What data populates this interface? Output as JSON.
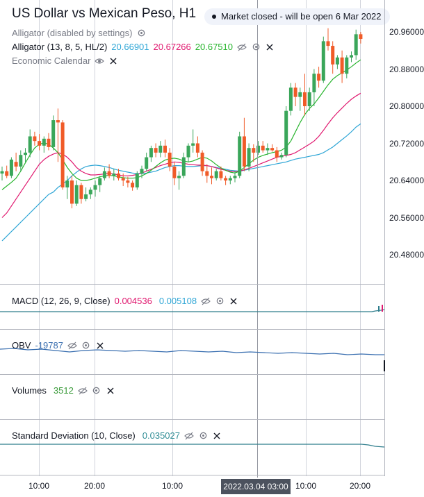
{
  "header": {
    "title": "US Dollar vs Mexican Peso, H1",
    "market_status": "Market closed - will be open 6 Mar 2022"
  },
  "legend": {
    "alligator_disabled": "Alligator (disabled by settings)",
    "alligator_name": "Alligator (13, 8, 5, HL/2)",
    "alligator_jaw": "20.66901",
    "alligator_teeth": "20.67266",
    "alligator_lips": "20.67510",
    "economic_calendar": "Economic Calendar"
  },
  "indicators": {
    "macd_name": "MACD (12, 26, 9, Close)",
    "macd_value1": "0.004536",
    "macd_value2": "0.005108",
    "obv_name": "OBV",
    "obv_value": "-19787",
    "volumes_name": "Volumes",
    "volumes_value": "3512",
    "stddev_name": "Standard Deviation (10, Close)",
    "stddev_value": "0.035027"
  },
  "price_axis": [
    "20.96000",
    "20.88000",
    "20.80000",
    "20.72000",
    "20.64000",
    "20.56000",
    "20.48000"
  ],
  "time_axis": [
    "10:00",
    "20:00",
    "10:00",
    "2022.03.04 03:00",
    "10:00",
    "20:00"
  ],
  "colors": {
    "bull": "#26a69a",
    "bull_candle": "#3aa65a",
    "bear": "#f05b28",
    "jaw": "#2fa6d6",
    "teeth": "#e0186f",
    "lips": "#28b52e"
  },
  "chart_data": {
    "type": "candlestick",
    "title": "US Dollar vs Mexican Peso, H1",
    "ylim": [
      20.44,
      20.98
    ],
    "y_ticks": [
      20.48,
      20.56,
      20.64,
      20.72,
      20.8,
      20.88,
      20.96
    ],
    "candles": [
      {
        "o": 20.655,
        "h": 20.67,
        "l": 20.64,
        "c": 20.66
      },
      {
        "o": 20.66,
        "h": 20.672,
        "l": 20.645,
        "c": 20.65
      },
      {
        "o": 20.65,
        "h": 20.69,
        "l": 20.645,
        "c": 20.685
      },
      {
        "o": 20.68,
        "h": 20.7,
        "l": 20.66,
        "c": 20.67
      },
      {
        "o": 20.67,
        "h": 20.705,
        "l": 20.66,
        "c": 20.695
      },
      {
        "o": 20.695,
        "h": 20.71,
        "l": 20.68,
        "c": 20.7
      },
      {
        "o": 20.7,
        "h": 20.75,
        "l": 20.69,
        "c": 20.735
      },
      {
        "o": 20.735,
        "h": 20.745,
        "l": 20.715,
        "c": 20.725
      },
      {
        "o": 20.725,
        "h": 20.74,
        "l": 20.705,
        "c": 20.715
      },
      {
        "o": 20.715,
        "h": 20.735,
        "l": 20.7,
        "c": 20.73
      },
      {
        "o": 20.73,
        "h": 20.742,
        "l": 20.705,
        "c": 20.712
      },
      {
        "o": 20.712,
        "h": 20.78,
        "l": 20.705,
        "c": 20.77
      },
      {
        "o": 20.77,
        "h": 20.795,
        "l": 20.68,
        "c": 20.765
      },
      {
        "o": 20.765,
        "h": 20.77,
        "l": 20.62,
        "c": 20.625
      },
      {
        "o": 20.625,
        "h": 20.65,
        "l": 20.6,
        "c": 20.64
      },
      {
        "o": 20.64,
        "h": 20.65,
        "l": 20.58,
        "c": 20.59
      },
      {
        "o": 20.59,
        "h": 20.64,
        "l": 20.585,
        "c": 20.63
      },
      {
        "o": 20.63,
        "h": 20.635,
        "l": 20.59,
        "c": 20.6
      },
      {
        "o": 20.6,
        "h": 20.625,
        "l": 20.595,
        "c": 20.61
      },
      {
        "o": 20.61,
        "h": 20.625,
        "l": 20.6,
        "c": 20.62
      },
      {
        "o": 20.62,
        "h": 20.64,
        "l": 20.605,
        "c": 20.63
      },
      {
        "o": 20.63,
        "h": 20.65,
        "l": 20.615,
        "c": 20.645
      },
      {
        "o": 20.645,
        "h": 20.668,
        "l": 20.64,
        "c": 20.66
      },
      {
        "o": 20.66,
        "h": 20.675,
        "l": 20.645,
        "c": 20.65
      },
      {
        "o": 20.65,
        "h": 20.665,
        "l": 20.64,
        "c": 20.655
      },
      {
        "o": 20.655,
        "h": 20.665,
        "l": 20.64,
        "c": 20.645
      },
      {
        "o": 20.645,
        "h": 20.655,
        "l": 20.628,
        "c": 20.64
      },
      {
        "o": 20.64,
        "h": 20.648,
        "l": 20.625,
        "c": 20.635
      },
      {
        "o": 20.635,
        "h": 20.64,
        "l": 20.618,
        "c": 20.625
      },
      {
        "o": 20.625,
        "h": 20.66,
        "l": 20.62,
        "c": 20.655
      },
      {
        "o": 20.655,
        "h": 20.672,
        "l": 20.645,
        "c": 20.665
      },
      {
        "o": 20.665,
        "h": 20.7,
        "l": 20.66,
        "c": 20.69
      },
      {
        "o": 20.69,
        "h": 20.715,
        "l": 20.68,
        "c": 20.71
      },
      {
        "o": 20.71,
        "h": 20.72,
        "l": 20.69,
        "c": 20.7
      },
      {
        "o": 20.7,
        "h": 20.725,
        "l": 20.69,
        "c": 20.715
      },
      {
        "o": 20.715,
        "h": 20.728,
        "l": 20.69,
        "c": 20.7
      },
      {
        "o": 20.7,
        "h": 20.71,
        "l": 20.66,
        "c": 20.67
      },
      {
        "o": 20.67,
        "h": 20.68,
        "l": 20.63,
        "c": 20.645
      },
      {
        "o": 20.645,
        "h": 20.66,
        "l": 20.62,
        "c": 20.65
      },
      {
        "o": 20.65,
        "h": 20.7,
        "l": 20.645,
        "c": 20.69
      },
      {
        "o": 20.69,
        "h": 20.72,
        "l": 20.68,
        "c": 20.715
      },
      {
        "o": 20.715,
        "h": 20.75,
        "l": 20.7,
        "c": 20.72
      },
      {
        "o": 20.72,
        "h": 20.735,
        "l": 20.69,
        "c": 20.7
      },
      {
        "o": 20.7,
        "h": 20.705,
        "l": 20.65,
        "c": 20.66
      },
      {
        "o": 20.66,
        "h": 20.675,
        "l": 20.635,
        "c": 20.65
      },
      {
        "o": 20.65,
        "h": 20.668,
        "l": 20.632,
        "c": 20.645
      },
      {
        "o": 20.645,
        "h": 20.665,
        "l": 20.64,
        "c": 20.66
      },
      {
        "o": 20.66,
        "h": 20.67,
        "l": 20.64,
        "c": 20.645
      },
      {
        "o": 20.645,
        "h": 20.65,
        "l": 20.63,
        "c": 20.64
      },
      {
        "o": 20.64,
        "h": 20.65,
        "l": 20.632,
        "c": 20.645
      },
      {
        "o": 20.645,
        "h": 20.66,
        "l": 20.636,
        "c": 20.65
      },
      {
        "o": 20.65,
        "h": 20.745,
        "l": 20.645,
        "c": 20.735
      },
      {
        "o": 20.735,
        "h": 20.775,
        "l": 20.66,
        "c": 20.67
      },
      {
        "o": 20.67,
        "h": 20.72,
        "l": 20.66,
        "c": 20.71
      },
      {
        "o": 20.71,
        "h": 20.718,
        "l": 20.68,
        "c": 20.7
      },
      {
        "o": 20.7,
        "h": 20.725,
        "l": 20.695,
        "c": 20.715
      },
      {
        "o": 20.715,
        "h": 20.725,
        "l": 20.7,
        "c": 20.705
      },
      {
        "o": 20.705,
        "h": 20.72,
        "l": 20.695,
        "c": 20.71
      },
      {
        "o": 20.71,
        "h": 20.718,
        "l": 20.702,
        "c": 20.705
      },
      {
        "o": 20.705,
        "h": 20.712,
        "l": 20.68,
        "c": 20.69
      },
      {
        "o": 20.69,
        "h": 20.7,
        "l": 20.685,
        "c": 20.695
      },
      {
        "o": 20.695,
        "h": 20.8,
        "l": 20.69,
        "c": 20.79
      },
      {
        "o": 20.79,
        "h": 20.85,
        "l": 20.78,
        "c": 20.84
      },
      {
        "o": 20.84,
        "h": 20.85,
        "l": 20.8,
        "c": 20.82
      },
      {
        "o": 20.82,
        "h": 20.84,
        "l": 20.79,
        "c": 20.83
      },
      {
        "o": 20.83,
        "h": 20.87,
        "l": 20.78,
        "c": 20.8
      },
      {
        "o": 20.8,
        "h": 20.84,
        "l": 20.79,
        "c": 20.83
      },
      {
        "o": 20.83,
        "h": 20.88,
        "l": 20.8,
        "c": 20.87
      },
      {
        "o": 20.87,
        "h": 20.885,
        "l": 20.84,
        "c": 20.855
      },
      {
        "o": 20.855,
        "h": 20.95,
        "l": 20.85,
        "c": 20.94
      },
      {
        "o": 20.94,
        "h": 20.968,
        "l": 20.92,
        "c": 20.93
      },
      {
        "o": 20.93,
        "h": 20.94,
        "l": 20.87,
        "c": 20.89
      },
      {
        "o": 20.89,
        "h": 20.91,
        "l": 20.88,
        "c": 20.905
      },
      {
        "o": 20.905,
        "h": 20.92,
        "l": 20.85,
        "c": 20.87
      },
      {
        "o": 20.87,
        "h": 20.91,
        "l": 20.86,
        "c": 20.905
      },
      {
        "o": 20.905,
        "h": 20.918,
        "l": 20.895,
        "c": 20.91
      },
      {
        "o": 20.91,
        "h": 20.965,
        "l": 20.9,
        "c": 20.955
      },
      {
        "o": 20.955,
        "h": 20.96,
        "l": 20.935,
        "c": 20.945
      }
    ],
    "jaw": [
      20.51,
      20.52,
      20.53,
      20.54,
      20.55,
      20.56,
      20.57,
      20.58,
      20.59,
      20.6,
      20.61,
      20.615,
      20.625,
      20.632,
      20.64,
      20.65,
      20.658,
      20.665,
      20.67,
      20.672,
      20.673,
      20.672,
      20.67,
      20.668,
      20.665,
      20.662,
      20.66,
      20.658,
      20.656,
      20.655,
      20.655,
      20.656,
      20.658,
      20.66,
      20.664,
      20.668,
      20.67,
      20.672,
      20.672,
      20.671,
      20.67,
      20.67,
      20.671,
      20.672,
      20.672,
      20.67,
      20.668,
      20.666,
      20.664,
      20.662,
      20.661,
      20.66,
      20.662,
      20.664,
      20.666,
      20.668,
      20.67,
      20.672,
      20.674,
      20.676,
      20.678,
      20.68,
      20.683,
      20.686,
      20.688,
      20.69,
      20.692,
      20.694,
      20.696,
      20.7,
      20.706,
      20.712,
      20.72,
      20.728,
      20.736,
      20.745,
      20.755,
      20.762
    ],
    "teeth": [
      20.56,
      20.57,
      20.585,
      20.6,
      20.615,
      20.63,
      20.645,
      20.66,
      20.675,
      20.685,
      20.692,
      20.697,
      20.7,
      20.697,
      20.69,
      20.68,
      20.668,
      20.66,
      20.655,
      20.652,
      20.652,
      20.653,
      20.654,
      20.655,
      20.654,
      20.652,
      20.65,
      20.65,
      20.651,
      20.653,
      20.656,
      20.66,
      20.664,
      20.668,
      20.672,
      20.675,
      20.678,
      20.68,
      20.679,
      20.677,
      20.675,
      20.674,
      20.673,
      20.673,
      20.672,
      20.67,
      20.667,
      20.664,
      20.662,
      20.66,
      20.659,
      20.66,
      20.663,
      20.666,
      20.67,
      20.674,
      20.678,
      20.682,
      20.686,
      20.69,
      20.692,
      20.694,
      20.696,
      20.7,
      20.706,
      20.712,
      20.718,
      20.725,
      20.735,
      20.748,
      20.762,
      20.775,
      20.786,
      20.796,
      20.806,
      20.815,
      20.822,
      20.828
    ],
    "lips": [
      20.62,
      20.628,
      20.636,
      20.645,
      20.66,
      20.678,
      20.695,
      20.71,
      20.718,
      20.721,
      20.718,
      20.71,
      20.7,
      20.685,
      20.668,
      20.655,
      20.645,
      20.64,
      20.64,
      20.642,
      20.645,
      20.648,
      20.65,
      20.651,
      20.65,
      20.648,
      20.646,
      20.645,
      20.645,
      20.646,
      20.65,
      20.655,
      20.662,
      20.67,
      20.678,
      20.684,
      20.687,
      20.688,
      20.686,
      20.682,
      20.68,
      20.682,
      20.686,
      20.69,
      20.688,
      20.682,
      20.674,
      20.667,
      20.662,
      20.658,
      20.656,
      20.66,
      20.668,
      20.676,
      20.684,
      20.69,
      20.694,
      20.697,
      20.7,
      20.702,
      20.705,
      20.712,
      20.725,
      20.745,
      20.765,
      20.782,
      20.795,
      20.805,
      20.818,
      20.832,
      20.846,
      20.858,
      20.866,
      20.872,
      20.878,
      20.885,
      20.893,
      20.9
    ]
  }
}
